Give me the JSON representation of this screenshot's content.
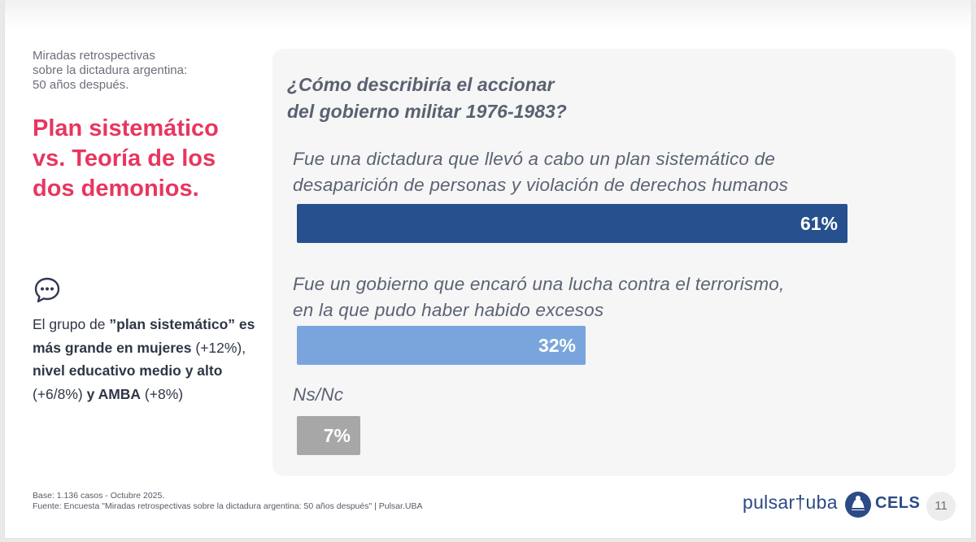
{
  "kicker": {
    "line1": "Miradas retrospectivas",
    "line2": "sobre la dictadura argentina:",
    "line3": "50 años después."
  },
  "main_title": {
    "line1": "Plan sistemático",
    "line2": "vs. Teoría de los",
    "line3": "dos demonios."
  },
  "insight": {
    "p1": "El grupo de ",
    "b1": "”plan sistemático” es más grande en mujeres",
    "p2": " (+12%), ",
    "b2": "nivel educativo medio y alto",
    "p3": " (+6/8%) ",
    "b3": "y AMBA",
    "p4": " (+8%)"
  },
  "icons": {
    "comment": "chat-bubble-icon",
    "cels": "cels-logo-icon"
  },
  "footer": {
    "base": "Base: 1.136 casos - Octubre 2025.",
    "source": "Fuente: Encuesta \"Miradas retrospectivas sobre la dictadura argentina: 50 años después\" | Pulsar.UBA",
    "logo_pulsar": "pulsar†uba",
    "logo_cels": "CELS",
    "page_number": "11"
  },
  "colors": {
    "accent": "#e7365f",
    "bar1": "#26508e",
    "bar2": "#7aa5dc",
    "bar3": "#a7a7a7"
  },
  "chart_data": {
    "type": "bar",
    "orientation": "horizontal",
    "title_line1": "¿Cómo describiría el accionar",
    "title_line2": "del gobierno militar 1976-1983?",
    "categories": [
      {
        "line1": "Fue una dictadura que llevó a cabo un plan sistemático de",
        "line2": "desaparición de personas y violación de derechos humanos"
      },
      {
        "line1": "Fue un gobierno que encaró una lucha contra el terrorismo,",
        "line2": "en la que pudo haber habido excesos"
      },
      {
        "line1": "Ns/Nc",
        "line2": ""
      }
    ],
    "values": [
      61,
      32,
      7
    ],
    "value_labels": [
      "61%",
      "32%",
      "7%"
    ],
    "unit": "%",
    "xlim": [
      0,
      100
    ]
  }
}
